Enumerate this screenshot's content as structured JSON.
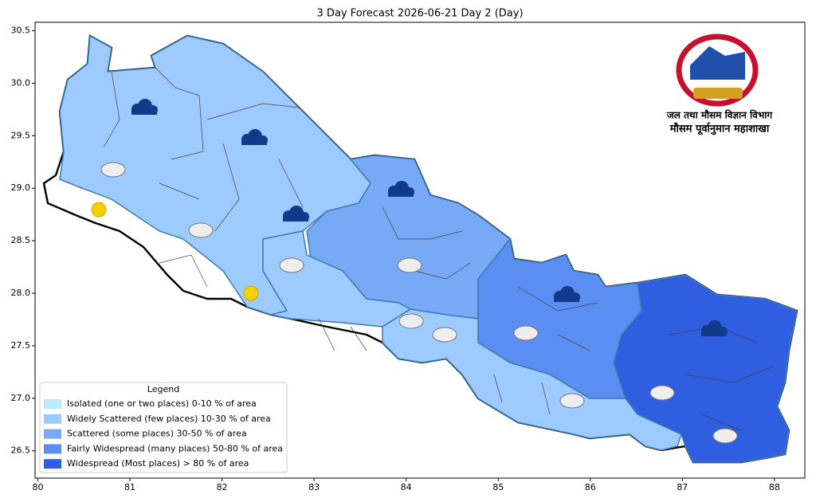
{
  "title": "3 Day Forecast 2026-06-21 Day 2 (Day)",
  "axes": {
    "xlim": [
      79.97,
      88.33
    ],
    "ylim": [
      26.24,
      30.58
    ],
    "xticks": [
      80,
      81,
      82,
      83,
      84,
      85,
      86,
      87,
      88
    ],
    "yticks": [
      26.5,
      {
        "value": 27,
        "label": "27.0"
      },
      27.5,
      {
        "value": 28,
        "label": "28.0"
      },
      28.5,
      {
        "value": 29,
        "label": "29.0"
      },
      29.5,
      {
        "value": 30,
        "label": "30.0"
      },
      30.5
    ]
  },
  "legend": {
    "title": "Legend",
    "entries": [
      {
        "label": "Isolated (one or two places)  0-10 % of area",
        "color": "#b9ecff"
      },
      {
        "label": "Widely Scattered (few places)  10-30 % of area",
        "color": "#9ecbff"
      },
      {
        "label": "Scattered (some places)  30-50 % of area",
        "color": "#78a9f7"
      },
      {
        "label": "Fairly Widespread (many places)  50-80 % of area",
        "color": "#5a8ef0"
      },
      {
        "label": "Widespread (Most places) > 80 % of area",
        "color": "#2f5fe0"
      }
    ]
  },
  "logo": {
    "line1": "जल तथा मौसम विज्ञान विभाग",
    "line2": "मौसम पूर्वानुमान महाशाखा"
  }
}
